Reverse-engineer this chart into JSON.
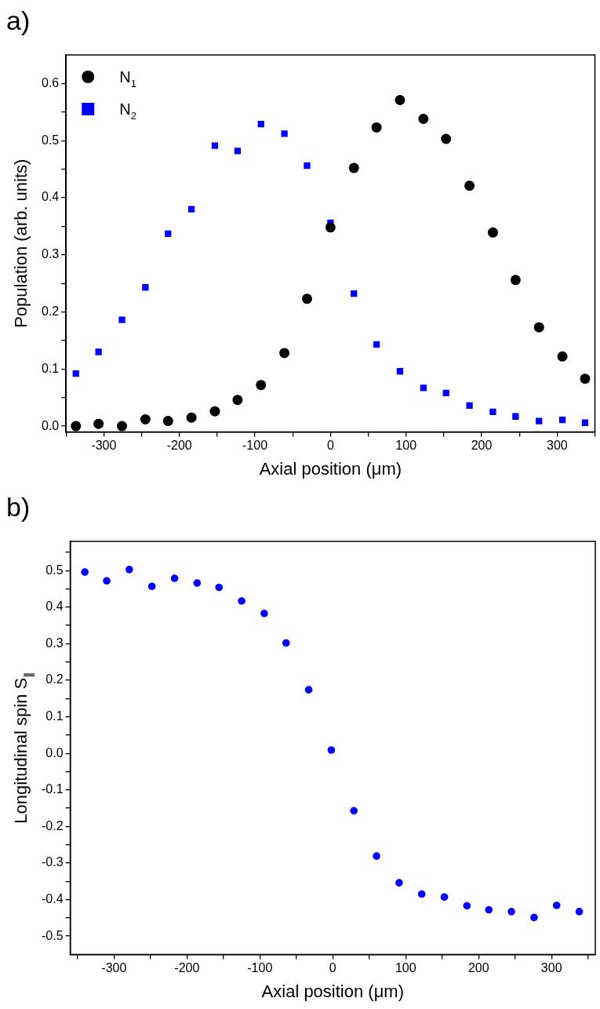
{
  "chart_data": [
    {
      "type": "scatter",
      "title": "a)",
      "xlabel": "Axial position (μm)",
      "ylabel": "Population (arb. units)",
      "legend": "top left",
      "grid": false,
      "xlim": [
        -350,
        350
      ],
      "xticks": [
        {
          "value": -350,
          "label": null
        },
        -300,
        {
          "value": -250,
          "label": null
        },
        -200,
        {
          "value": -150,
          "label": null
        },
        -100,
        {
          "value": -50,
          "label": null
        },
        0,
        {
          "value": 50,
          "label": null
        },
        100,
        {
          "value": 150,
          "label": null
        },
        200,
        {
          "value": 250,
          "label": null
        },
        300,
        {
          "value": 350,
          "label": null
        }
      ],
      "ylim": [
        -0.01,
        0.65
      ],
      "yticks": [
        {
          "value": 0,
          "label": "0.0"
        },
        {
          "value": 0.05,
          "label": null
        },
        0.1,
        {
          "value": 0.15,
          "label": null
        },
        0.2,
        {
          "value": 0.25,
          "label": null
        },
        0.3,
        {
          "value": 0.35,
          "label": null
        },
        0.4,
        {
          "value": 0.45,
          "label": null
        },
        0.5,
        {
          "value": 0.55,
          "label": null
        },
        0.6
      ],
      "x": [
        -337,
        -307,
        -276,
        -245,
        -215,
        -184,
        -153,
        -123,
        -92,
        -61,
        -31,
        0,
        31,
        61,
        92,
        123,
        153,
        184,
        215,
        245,
        276,
        307,
        337
      ],
      "series": [
        {
          "name": "N$_{1}$",
          "color": "#000000",
          "marker": "circle",
          "values": [
            0.0,
            0.004,
            0.0,
            0.012,
            0.009,
            0.015,
            0.026,
            0.046,
            0.072,
            0.128,
            0.223,
            0.348,
            0.452,
            0.523,
            0.571,
            0.538,
            0.503,
            0.421,
            0.339,
            0.256,
            0.173,
            0.122,
            0.083
          ]
        },
        {
          "name": "N$_{2}$",
          "color": "#0000ff",
          "marker": "square",
          "values": [
            0.092,
            0.13,
            0.186,
            0.243,
            0.337,
            0.38,
            0.491,
            0.482,
            0.529,
            0.512,
            0.456,
            0.356,
            0.232,
            0.143,
            0.096,
            0.067,
            0.058,
            0.036,
            0.025,
            0.017,
            0.009,
            0.011,
            0.006
          ]
        }
      ]
    },
    {
      "type": "scatter",
      "title": "b)",
      "xlabel": "Axial position (μm)",
      "ylabel": "Longitudinal spin S$_{∥}$",
      "grid": false,
      "marker": "circle",
      "xlim": [
        -360,
        360
      ],
      "xticks": [
        {
          "value": -350,
          "label": null
        },
        -300,
        {
          "value": -250,
          "label": null
        },
        -200,
        {
          "value": -150,
          "label": null
        },
        -100,
        {
          "value": -50,
          "label": null
        },
        0,
        {
          "value": 50,
          "label": null
        },
        100,
        {
          "value": 150,
          "label": null
        },
        200,
        {
          "value": 250,
          "label": null
        },
        300,
        {
          "value": 350,
          "label": null
        }
      ],
      "ylim": [
        -0.55,
        0.58
      ],
      "yticks": [
        -0.5,
        {
          "value": -0.45,
          "label": null
        },
        -0.4,
        {
          "value": -0.35,
          "label": null
        },
        -0.3,
        {
          "value": -0.25,
          "label": null
        },
        -0.2,
        {
          "value": -0.15,
          "label": null
        },
        -0.1,
        {
          "value": -0.05,
          "label": null
        },
        {
          "value": 0,
          "label": "0.0"
        },
        {
          "value": 0.05,
          "label": null
        },
        0.1,
        {
          "value": 0.15,
          "label": null
        },
        0.2,
        {
          "value": 0.25,
          "label": null
        },
        0.3,
        {
          "value": 0.35,
          "label": null
        },
        0.4,
        {
          "value": 0.45,
          "label": null
        },
        0.5,
        {
          "value": 0.55,
          "label": null
        }
      ],
      "x": [
        -340,
        -310,
        -279,
        -248,
        -217,
        -186,
        -156,
        -125,
        -94,
        -64,
        -33,
        -2,
        29,
        60,
        91,
        122,
        153,
        184,
        214,
        245,
        276,
        307,
        338
      ],
      "series": [
        {
          "color": "#0000ff",
          "values": [
            0.496,
            0.472,
            0.503,
            0.457,
            0.479,
            0.466,
            0.454,
            0.417,
            0.383,
            0.302,
            0.174,
            0.009,
            -0.157,
            -0.281,
            -0.354,
            -0.385,
            -0.393,
            -0.417,
            -0.428,
            -0.433,
            -0.449,
            -0.416,
            -0.433
          ]
        }
      ]
    }
  ]
}
